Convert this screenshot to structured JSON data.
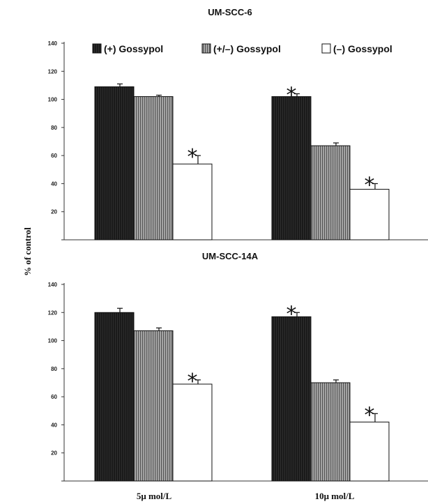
{
  "ylabel": "% of control",
  "categories": [
    "5μ mol/L",
    "10μ mol/L"
  ],
  "legend": [
    {
      "label": "(+) Gossypol",
      "color": "#1a1a1a",
      "pattern": "dark"
    },
    {
      "label": "(+/–) Gossypol",
      "color": "#8c8c8c",
      "pattern": "striped"
    },
    {
      "label": "(–) Gossypol",
      "color": "#ffffff",
      "pattern": "white"
    }
  ],
  "significance_marker": "*",
  "chart_data": [
    {
      "type": "bar",
      "title": "UM-SCC-6",
      "ylim": [
        0,
        140
      ],
      "yticks": [
        20,
        40,
        60,
        80,
        100,
        120,
        140
      ],
      "categories": [
        "5μ mol/L",
        "10μ mol/L"
      ],
      "series": [
        {
          "name": "(+) Gossypol",
          "values": [
            109,
            102
          ],
          "errors": [
            2,
            2
          ],
          "significant": [
            false,
            true
          ]
        },
        {
          "name": "(+/–) Gossypol",
          "values": [
            102,
            67
          ],
          "errors": [
            1,
            2
          ],
          "significant": [
            false,
            false
          ]
        },
        {
          "name": "(–) Gossypol",
          "values": [
            54,
            36
          ],
          "errors": [
            6,
            4
          ],
          "significant": [
            true,
            true
          ]
        }
      ]
    },
    {
      "type": "bar",
      "title": "UM-SCC-14A",
      "ylim": [
        0,
        140
      ],
      "yticks": [
        20,
        40,
        60,
        80,
        100,
        120,
        140
      ],
      "categories": [
        "5μ mol/L",
        "10μ mol/L"
      ],
      "series": [
        {
          "name": "(+) Gossypol",
          "values": [
            120,
            117
          ],
          "errors": [
            3,
            3
          ],
          "significant": [
            false,
            true
          ]
        },
        {
          "name": "(+/–) Gossypol",
          "values": [
            107,
            70
          ],
          "errors": [
            2,
            2
          ],
          "significant": [
            false,
            false
          ]
        },
        {
          "name": "(–) Gossypol",
          "values": [
            69,
            42
          ],
          "errors": [
            3,
            6
          ],
          "significant": [
            true,
            true
          ]
        }
      ]
    }
  ]
}
